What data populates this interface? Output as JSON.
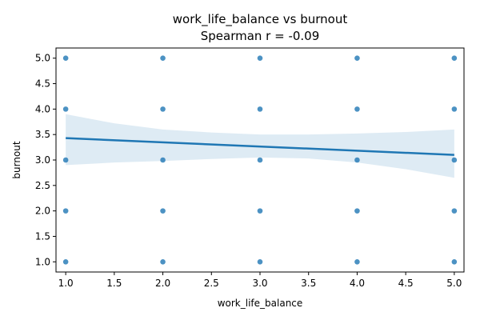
{
  "chart_data": {
    "type": "scatter",
    "title": "work_life_balance vs burnout",
    "subtitle": "Spearman r = -0.09",
    "xlabel": "work_life_balance",
    "ylabel": "burnout",
    "xlim": [
      0.9,
      5.1
    ],
    "ylim": [
      0.8,
      5.2
    ],
    "xticks": [
      "1.0",
      "1.5",
      "2.0",
      "2.5",
      "3.0",
      "3.5",
      "4.0",
      "4.5",
      "5.0"
    ],
    "yticks": [
      "1.0",
      "1.5",
      "2.0",
      "2.5",
      "3.0",
      "3.5",
      "4.0",
      "4.5",
      "5.0"
    ],
    "grid": false,
    "colors": {
      "points": "#1f77b4",
      "line": "#1f77b4",
      "band": "#1f77b4"
    },
    "points": [
      {
        "x": 1,
        "y": 5
      },
      {
        "x": 1,
        "y": 4
      },
      {
        "x": 1,
        "y": 3
      },
      {
        "x": 1,
        "y": 2
      },
      {
        "x": 1,
        "y": 1
      },
      {
        "x": 2,
        "y": 5
      },
      {
        "x": 2,
        "y": 4
      },
      {
        "x": 2,
        "y": 3
      },
      {
        "x": 2,
        "y": 2
      },
      {
        "x": 2,
        "y": 1
      },
      {
        "x": 3,
        "y": 5
      },
      {
        "x": 3,
        "y": 4
      },
      {
        "x": 3,
        "y": 3
      },
      {
        "x": 3,
        "y": 2
      },
      {
        "x": 3,
        "y": 1
      },
      {
        "x": 4,
        "y": 5
      },
      {
        "x": 4,
        "y": 4
      },
      {
        "x": 4,
        "y": 3
      },
      {
        "x": 4,
        "y": 2
      },
      {
        "x": 4,
        "y": 1
      },
      {
        "x": 5,
        "y": 5
      },
      {
        "x": 5,
        "y": 4
      },
      {
        "x": 5,
        "y": 3
      },
      {
        "x": 5,
        "y": 2
      },
      {
        "x": 5,
        "y": 1
      }
    ],
    "regression": {
      "x": [
        1.0,
        5.0
      ],
      "y": [
        3.43,
        3.1
      ]
    },
    "confidence_band": {
      "x": [
        1.0,
        1.5,
        2.0,
        2.5,
        3.0,
        3.5,
        4.0,
        4.5,
        5.0
      ],
      "upper": [
        3.9,
        3.72,
        3.6,
        3.54,
        3.5,
        3.5,
        3.52,
        3.55,
        3.6
      ],
      "lower": [
        2.9,
        2.95,
        2.98,
        3.02,
        3.05,
        3.03,
        2.95,
        2.82,
        2.65
      ]
    }
  }
}
